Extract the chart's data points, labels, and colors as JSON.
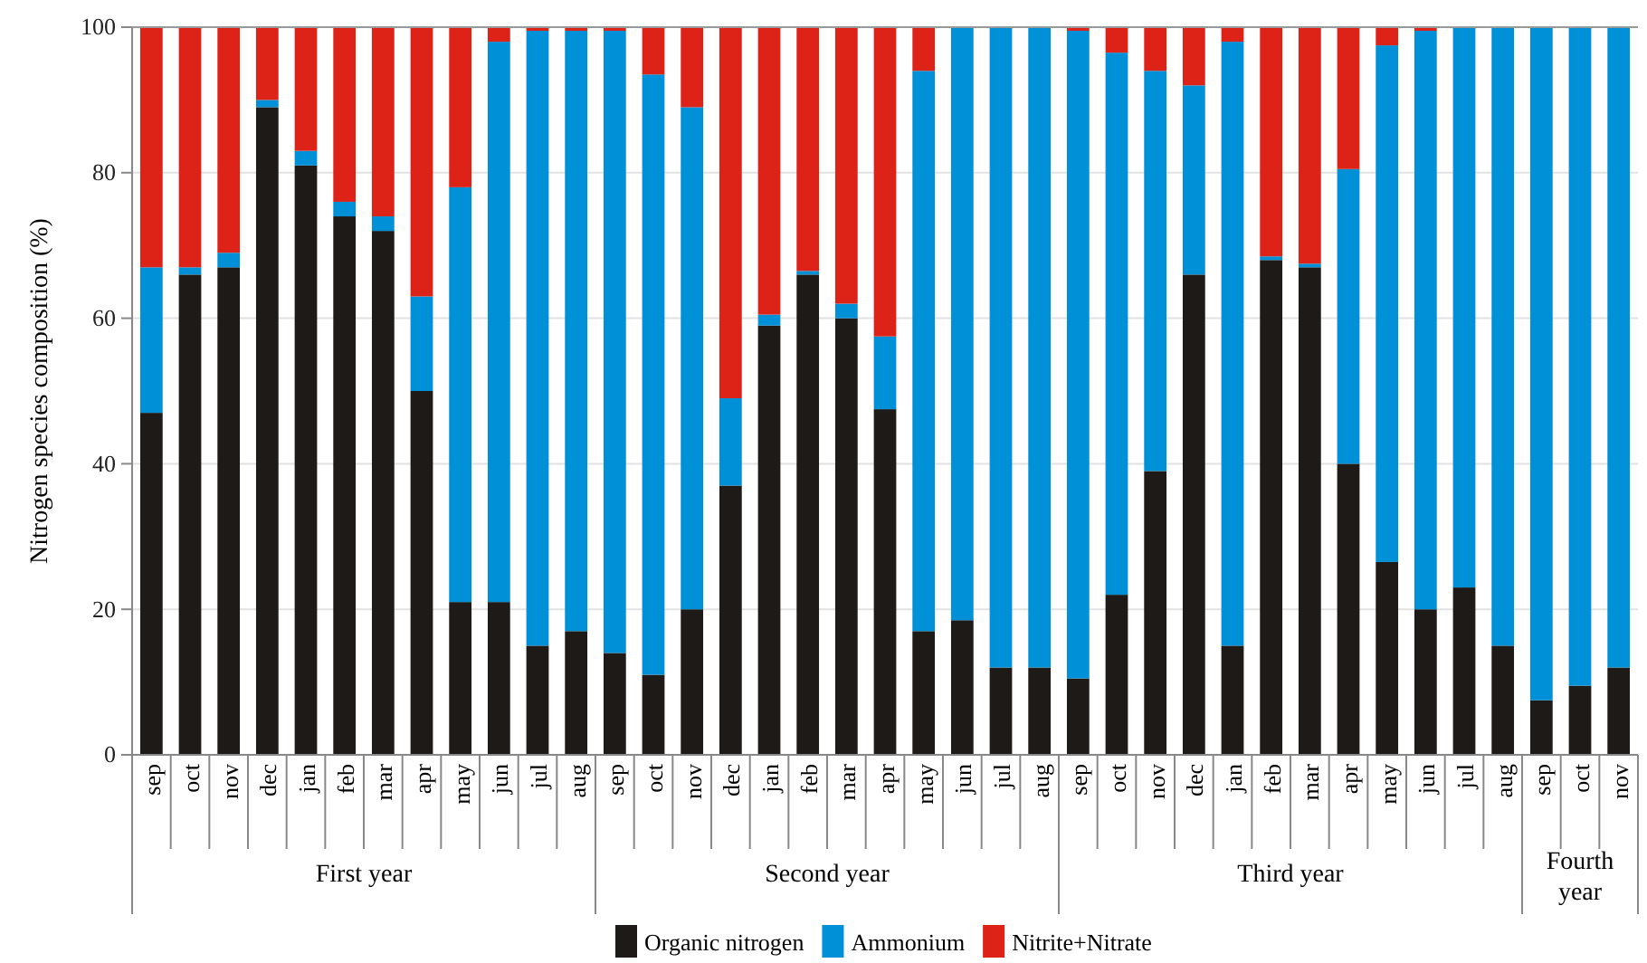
{
  "chart_data": {
    "type": "bar",
    "stacked": true,
    "ylabel": "Nitrogen species composition (%)",
    "categories": [
      "sep",
      "oct",
      "nov",
      "dec",
      "jan",
      "feb",
      "mar",
      "apr",
      "may",
      "jun",
      "jul",
      "aug",
      "sep",
      "oct",
      "nov",
      "dec",
      "jan",
      "feb",
      "mar",
      "apr",
      "may",
      "jun",
      "jul",
      "aug",
      "sep",
      "oct",
      "nov",
      "dec",
      "jan",
      "feb",
      "mar",
      "apr",
      "may",
      "jun",
      "jul",
      "aug",
      "sep",
      "oct",
      "nov"
    ],
    "series": [
      {
        "name": "Organic nitrogen",
        "color": "#1e1a17",
        "values": [
          47,
          66,
          67,
          89,
          81,
          74,
          72,
          50,
          21,
          21,
          15,
          17,
          14,
          11,
          20,
          37,
          59,
          66,
          60,
          47.5,
          17,
          18.5,
          12,
          12,
          10.5,
          22,
          39,
          66,
          15,
          68,
          67,
          40,
          26.5,
          20,
          23,
          15,
          7.5,
          9.5,
          12
        ]
      },
      {
        "name": "Ammonium",
        "color": "#0090d8",
        "values": [
          20,
          1,
          2,
          1,
          2,
          2,
          2,
          13,
          57,
          77,
          84.5,
          82.5,
          85.5,
          82.5,
          69,
          12,
          1.5,
          0.5,
          2,
          10,
          77,
          81.5,
          88,
          88,
          89,
          74.5,
          55,
          26,
          83,
          0.5,
          0.5,
          40.5,
          71,
          79.5,
          77,
          85,
          92.5,
          90.5,
          88
        ]
      },
      {
        "name": "Nitrite+Nitrate",
        "color": "#dd2218",
        "values": [
          33,
          33,
          31,
          10,
          17,
          24,
          26,
          37,
          22,
          2,
          0.5,
          0.5,
          0.5,
          6.5,
          11,
          51,
          39.5,
          33.5,
          38,
          42.5,
          6,
          0,
          0,
          0,
          0.5,
          3.5,
          6,
          8,
          2,
          31.5,
          32.5,
          19.5,
          2.5,
          0.5,
          0,
          0,
          0,
          0,
          0
        ]
      }
    ],
    "ylim": [
      0,
      100
    ],
    "yticks": [
      0,
      20,
      40,
      60,
      80,
      100
    ],
    "grid": "y",
    "legend": "bottom",
    "annotations": [
      "First year",
      "Second year",
      "Third year",
      "Fourth year"
    ]
  }
}
